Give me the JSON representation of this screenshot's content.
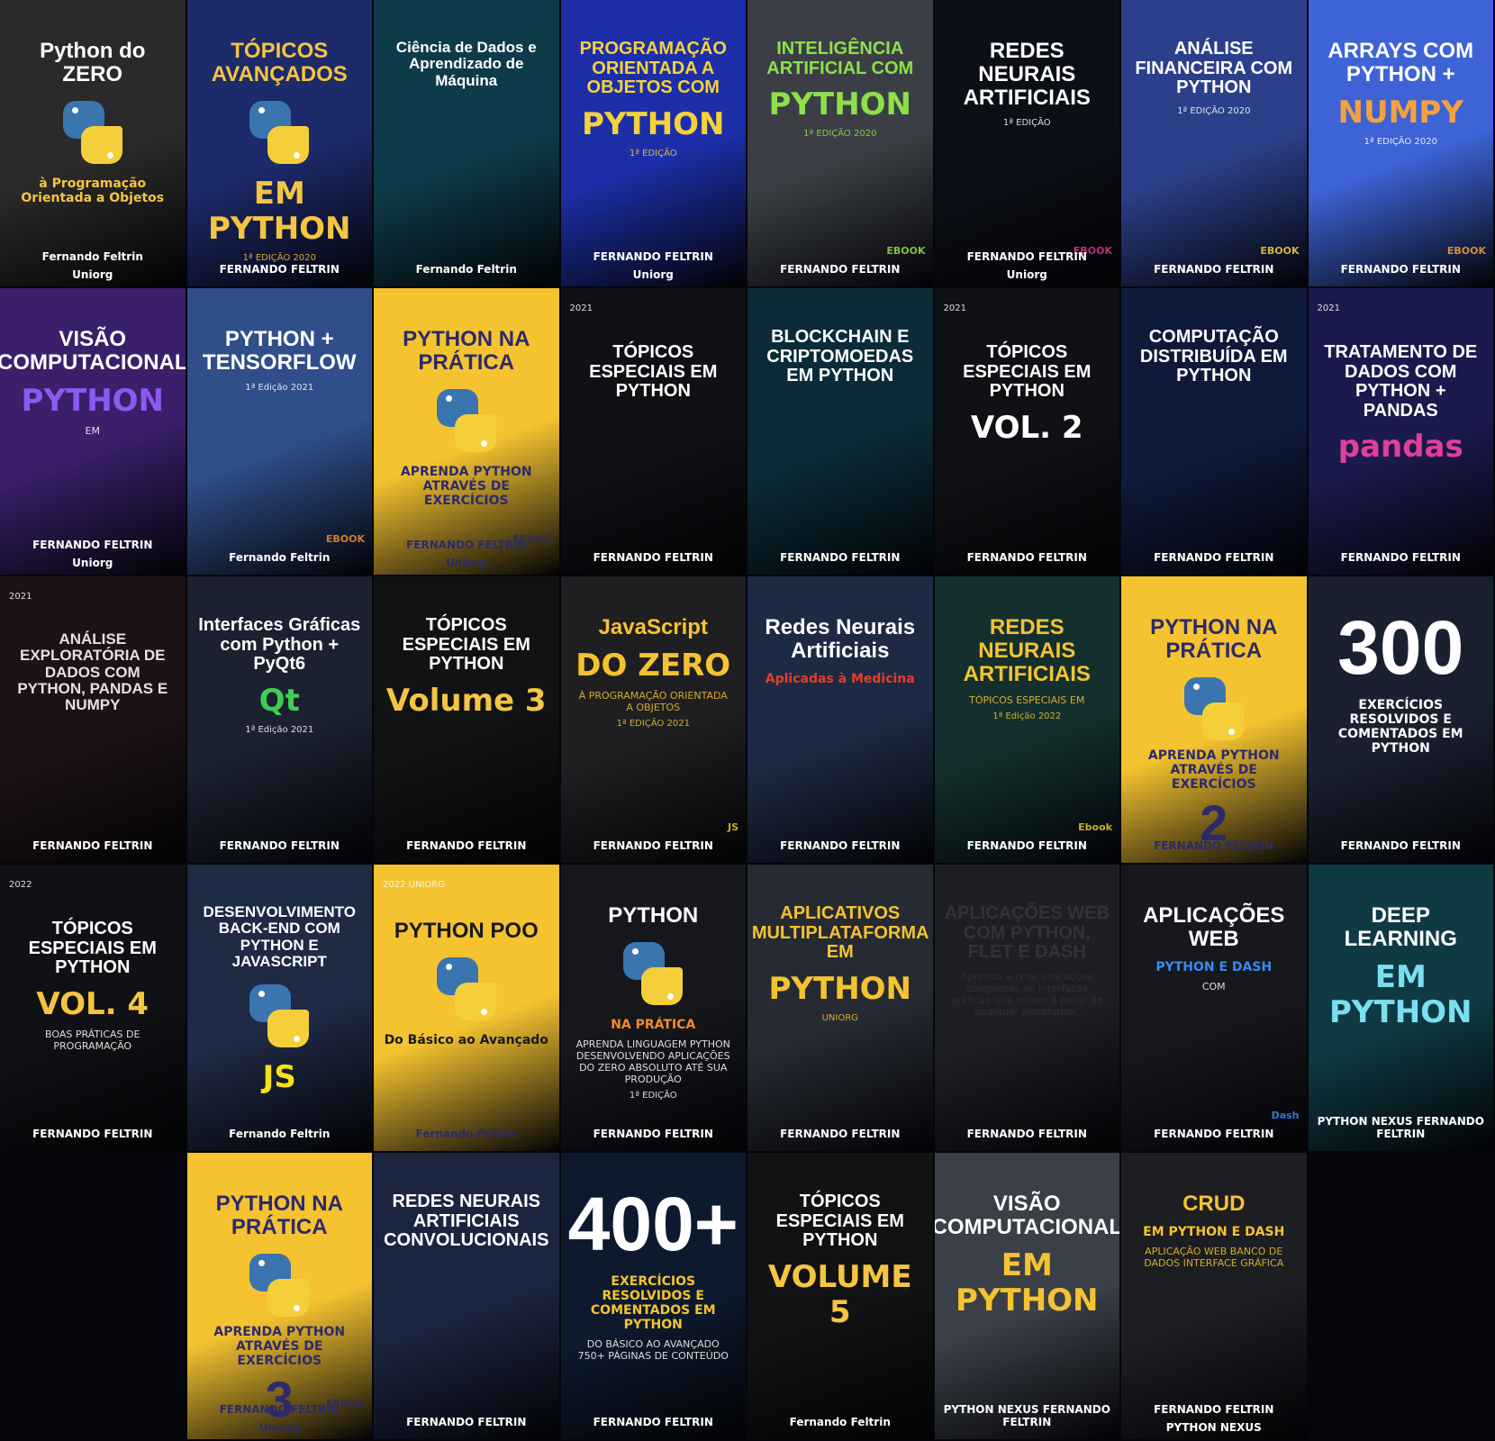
{
  "books": [
    {
      "id": "python-do-zero",
      "bg": "#2a2a2a",
      "fg": "#ffffff",
      "accent": "#f5c542",
      "title": "Python do ZERO",
      "subtitle": "à Programação Orientada a Objetos",
      "author": "Fernando Feltrin",
      "brand": "Uniorg",
      "icon": "python-logo"
    },
    {
      "id": "topicos-avancados",
      "bg": "#1d2a6b",
      "fg": "#f5c542",
      "accent": "#f5c542",
      "title": "TÓPICOS AVANÇADOS",
      "subtitle": "EM PYTHON",
      "author": "FERNANDO FELTRIN",
      "edition": "1ª EDIÇÃO 2020",
      "icon": "python-logo"
    },
    {
      "id": "ciencia-de-dados",
      "bg": "#0e3b4a",
      "fg": "#ffffff",
      "accent": "#f5a142",
      "title": "Ciência de Dados e Aprendizado de Máquina",
      "author": "Fernando Feltrin",
      "icon": "brain-icon"
    },
    {
      "id": "poo-python",
      "bg": "#1c2fa8",
      "fg": "#f5d23a",
      "accent": "#f5d23a",
      "title": "PROGRAMAÇÃO ORIENTADA A OBJETOS COM",
      "subtitle": "PYTHON",
      "author": "FERNANDO FELTRIN",
      "edition": "1ª EDIÇÃO",
      "brand": "Uniorg"
    },
    {
      "id": "ia-python",
      "bg": "#3b3f45",
      "fg": "#8ee04a",
      "accent": "#8ee04a",
      "title": "INTELIGÊNCIA ARTIFICIAL COM",
      "subtitle": "PYTHON",
      "author": "FERNANDO FELTRIN",
      "edition": "1ª EDIÇÃO 2020",
      "badge": "EBOOK"
    },
    {
      "id": "redes-neurais",
      "bg": "#0d0f18",
      "fg": "#ffffff",
      "accent": "#d23a8a",
      "title": "REDES NEURAIS ARTIFICIAIS",
      "author": "FERNANDO FELTRIN",
      "edition": "1ª EDIÇÃO",
      "brand": "Uniorg",
      "badge": "EBOOK"
    },
    {
      "id": "analise-financeira",
      "bg": "#2c3f8a",
      "fg": "#ffffff",
      "accent": "#f5d23a",
      "title": "ANÁLISE FINANCEIRA COM PYTHON",
      "author": "FERNANDO FELTRIN",
      "edition": "1ª EDIÇÃO 2020",
      "badge": "EBOOK"
    },
    {
      "id": "arrays-numpy",
      "bg": "#3d63d6",
      "fg": "#ffffff",
      "accent": "#f5a142",
      "title": "ARRAYS COM PYTHON +",
      "subtitle": "NUMPY",
      "author": "FERNANDO FELTRIN",
      "edition": "1ª EDIÇÃO 2020",
      "badge": "EBOOK"
    },
    {
      "id": "visao-computacional",
      "bg": "#3a1f6b",
      "fg": "#ffffff",
      "accent": "#8a5af0",
      "title": "VISÃO COMPUTACIONAL",
      "subtitle": "PYTHON",
      "note": "EM",
      "author": "FERNANDO FELTRIN",
      "brand": "Uniorg"
    },
    {
      "id": "python-tensorflow",
      "bg": "#2f4e8a",
      "fg": "#ffffff",
      "accent": "#f58a2a",
      "title": "PYTHON + TENSORFLOW",
      "author": "Fernando Feltrin",
      "edition": "1ª Edição 2021",
      "badge": "EBOOK"
    },
    {
      "id": "python-na-pratica-1",
      "bg": "#f5c330",
      "fg": "#2c2a6b",
      "accent": "#2c2a6b",
      "title": "PYTHON NA PRÁTICA",
      "subtitle": "APRENDA PYTHON ATRAVÉS DE EXERCÍCIOS",
      "author": "FERNANDO FELTRIN",
      "brand": "Uniorg",
      "badge": "EBOOK"
    },
    {
      "id": "topicos-especiais-1",
      "bg": "#101114",
      "fg": "#ffffff",
      "accent": "#ffffff",
      "title": "TÓPICOS ESPECIAIS EM PYTHON",
      "author": "FERNANDO FELTRIN",
      "edition": "2021"
    },
    {
      "id": "blockchain",
      "bg": "#0b2b38",
      "fg": "#ffffff",
      "accent": "#f5a030",
      "title": "BLOCKCHAIN E CRIPTOMOEDAS EM PYTHON",
      "author": "FERNANDO FELTRIN"
    },
    {
      "id": "topicos-especiais-2",
      "bg": "#101114",
      "fg": "#ffffff",
      "accent": "#ffffff",
      "title": "TÓPICOS ESPECIAIS EM PYTHON",
      "subtitle": "VOL. 2",
      "author": "FERNANDO FELTRIN",
      "edition": "2021"
    },
    {
      "id": "computacao-distribuida",
      "bg": "#0f1a3b",
      "fg": "#ffffff",
      "accent": "#3a7af0",
      "title": "COMPUTAÇÃO DISTRIBUÍDA EM PYTHON",
      "author": "FERNANDO FELTRIN"
    },
    {
      "id": "tratamento-pandas",
      "bg": "#1b1a4e",
      "fg": "#ffffff",
      "accent": "#e0409a",
      "title": "TRATAMENTO DE DADOS COM PYTHON + PANDAS",
      "subtitle": "pandas",
      "author": "FERNANDO FELTRIN",
      "edition": "2021"
    },
    {
      "id": "analise-exploratoria",
      "bg": "#1e1216",
      "fg": "#e8e0e0",
      "accent": "#8a7070",
      "title": "ANÁLISE EXPLORATÓRIA DE DADOS COM PYTHON, PANDAS E NUMPY",
      "author": "FERNANDO FELTRIN",
      "edition": "2021"
    },
    {
      "id": "interfaces-graficas",
      "bg": "#1b2130",
      "fg": "#ffffff",
      "accent": "#41cd52",
      "title": "Interfaces Gráficas com Python + PyQt6",
      "subtitle": "Qt",
      "author": "FERNANDO FELTRIN",
      "edition": "1ª Edição 2021"
    },
    {
      "id": "topicos-especiais-3",
      "bg": "#111214",
      "fg": "#ffffff",
      "accent": "#f5c542",
      "title": "TÓPICOS ESPECIAIS EM PYTHON",
      "subtitle": "Volume 3",
      "author": "FERNANDO FELTRIN"
    },
    {
      "id": "javascript-do-zero",
      "bg": "#1f1f22",
      "fg": "#f5c330",
      "accent": "#f5c330",
      "title": "JavaScript",
      "subtitle": "DO ZERO",
      "note": "À PROGRAMAÇÃO ORIENTADA A OBJETOS",
      "author": "FERNANDO FELTRIN",
      "edition": "1ª EDIÇÃO 2021",
      "badge": "JS"
    },
    {
      "id": "redes-neurais-medicina",
      "bg": "#1e2a44",
      "fg": "#ffffff",
      "accent": "#e0402a",
      "title": "Redes Neurais Artificiais",
      "subtitle": "Aplicadas à Medicina",
      "author": "FERNANDO FELTRIN"
    },
    {
      "id": "topicos-redes-neurais",
      "bg": "#14302e",
      "fg": "#f5c330",
      "accent": "#f5c330",
      "title": "REDES NEURAIS ARTIFICIAIS",
      "note": "TÓPICOS ESPECIAIS EM",
      "author": "FERNANDO FELTRIN",
      "edition": "1ª Edição 2022",
      "badge": "Ebook"
    },
    {
      "id": "python-na-pratica-2",
      "bg": "#f5c330",
      "fg": "#2c2a6b",
      "accent": "#2c2a6b",
      "title": "PYTHON NA PRÁTICA",
      "subtitle": "APRENDA PYTHON ATRAVÉS DE EXERCÍCIOS",
      "number": "2",
      "author": "FERNANDO FELTRIN"
    },
    {
      "id": "300-exercicios",
      "bg": "#1a2030",
      "fg": "#ffffff",
      "accent": "#ffffff",
      "title": "300",
      "subtitle": "EXERCÍCIOS RESOLVIDOS E COMENTADOS EM PYTHON",
      "author": "FERNANDO FELTRIN"
    },
    {
      "id": "topicos-especiais-4",
      "bg": "#101114",
      "fg": "#ffffff",
      "accent": "#f5c542",
      "title": "TÓPICOS ESPECIAIS EM PYTHON",
      "subtitle": "VOL. 4",
      "note": "BOAS PRÁTICAS DE PROGRAMAÇÃO",
      "author": "FERNANDO FELTRIN",
      "edition": "2022"
    },
    {
      "id": "backend-python-js",
      "bg": "#1f2a45",
      "fg": "#ffffff",
      "accent": "#f7e018",
      "title": "DESENVOLVIMENTO BACK-END COM PYTHON E JAVASCRIPT",
      "subtitle": "JS",
      "author": "Fernando Feltrin"
    },
    {
      "id": "python-poo",
      "bg": "#f5c330",
      "fg": "#1a1a1a",
      "accent": "#1a1a1a",
      "title": "PYTHON POO",
      "subtitle": "Do Básico ao Avançado",
      "author": "Fernando Feltrin",
      "edition": "2022 UNIORG"
    },
    {
      "id": "python-na-pratica-0",
      "bg": "#15171c",
      "fg": "#ffffff",
      "accent": "#f58a2a",
      "title": "PYTHON",
      "subtitle": "NA PRÁTICA",
      "author": "FERNANDO FELTRIN",
      "edition": "1ª EDIÇÃO",
      "note": "APRENDA LINGUAGEM PYTHON DESENVOLVENDO APLICAÇÕES DO ZERO ABSOLUTO ATÉ SUA PRODUÇÃO"
    },
    {
      "id": "aplicativos-multiplataforma",
      "bg": "#262a33",
      "fg": "#f5c330",
      "accent": "#f5c330",
      "title": "APLICATIVOS MULTIPLATAFORMA EM",
      "subtitle": "PYTHON",
      "author": "FERNANDO FELTRIN",
      "edition": "UNIORG"
    },
    {
      "id": "aplicacoes-web-flet",
      "bg": "#1e1f24",
      "fg": "#333333",
      "accent": "#f5c330",
      "title": "APLICAÇÕES WEB COM PYTHON, FLET E DASH",
      "author": "FERNANDO FELTRIN",
      "note": "Aprenda a criar aplicações compostas de interfaces gráficas que rodam a partir de qualquer plataforma."
    },
    {
      "id": "aplicacoes-web-dash",
      "bg": "#16181d",
      "fg": "#ffffff",
      "accent": "#3a8af0",
      "title": "APLICAÇÕES WEB",
      "subtitle": "PYTHON E DASH",
      "note": "COM",
      "author": "FERNANDO FELTRIN",
      "badge": "Dash"
    },
    {
      "id": "deep-learning",
      "bg": "#0f3a44",
      "fg": "#ffffff",
      "accent": "#7ae0f0",
      "title": "DEEP LEARNING",
      "subtitle": "EM PYTHON",
      "author": "PYTHON NEXUS FERNANDO FELTRIN"
    },
    {
      "id": "python-na-pratica-3",
      "bg": "#f5c330",
      "fg": "#2c2a6b",
      "accent": "#2c2a6b",
      "title": "PYTHON NA PRÁTICA",
      "subtitle": "APRENDA PYTHON ATRAVÉS DE EXERCÍCIOS",
      "number": "3",
      "author": "FERNANDO FELTRIN",
      "brand": "Uniorg",
      "badge": "EBOOK"
    },
    {
      "id": "redes-convolucionais",
      "bg": "#1c2540",
      "fg": "#ffffff",
      "accent": "#7aa0d0",
      "title": "REDES NEURAIS ARTIFICIAIS CONVOLUCIONAIS",
      "author": "FERNANDO FELTRIN"
    },
    {
      "id": "400-exercicios",
      "bg": "#0d1a2e",
      "fg": "#ffffff",
      "accent": "#f5c330",
      "title": "400+",
      "subtitle": "EXERCÍCIOS RESOLVIDOS E COMENTADOS EM PYTHON",
      "note": "DO BÁSICO AO AVANÇADO 750+ PÁGINAS DE CONTEÚDO",
      "author": "FERNANDO FELTRIN"
    },
    {
      "id": "topicos-especiais-5",
      "bg": "#111214",
      "fg": "#ffffff",
      "accent": "#f5c542",
      "title": "TÓPICOS ESPECIAIS EM PYTHON",
      "subtitle": "VOLUME 5",
      "author": "Fernando Feltrin"
    },
    {
      "id": "visao-computacional-2",
      "bg": "#3a3f48",
      "fg": "#ffffff",
      "accent": "#f5c330",
      "title": "VISÃO COMPUTACIONAL",
      "subtitle": "EM PYTHON",
      "author": "PYTHON NEXUS FERNANDO FELTRIN"
    },
    {
      "id": "crud-python",
      "bg": "#1d1e22",
      "fg": "#f5c330",
      "accent": "#f5c330",
      "title": "CRUD",
      "subtitle": "EM PYTHON E DASH",
      "note": "APLICAÇÃO WEB BANCO DE DADOS INTERFACE GRÁFICA",
      "author": "FERNANDO FELTRIN",
      "brand": "PYTHON NEXUS"
    }
  ]
}
